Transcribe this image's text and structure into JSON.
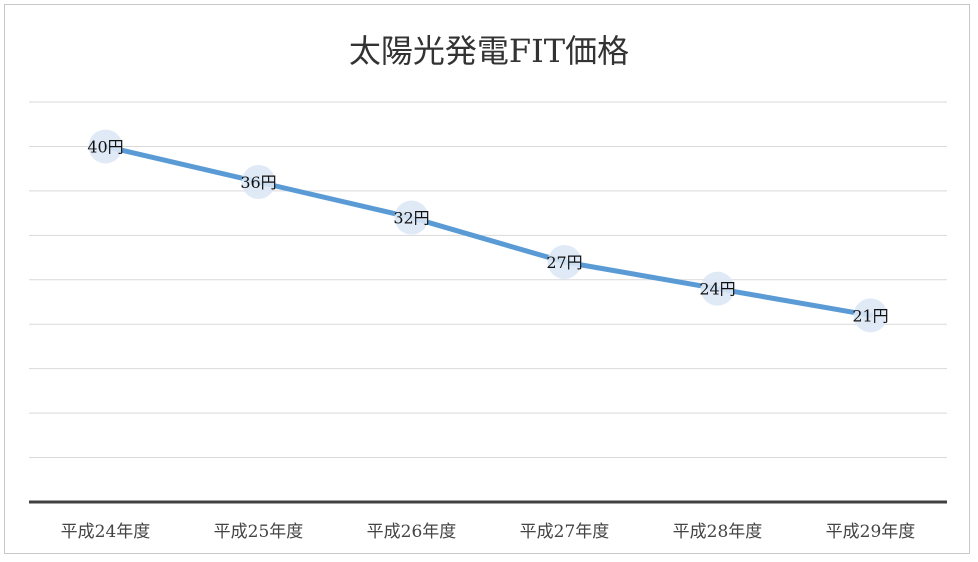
{
  "chart_data": {
    "type": "line",
    "title": "太陽光発電FIT価格",
    "categories": [
      "平成24年度",
      "平成25年度",
      "平成26年度",
      "平成27年度",
      "平成28年度",
      "平成29年度"
    ],
    "series": [
      {
        "values": [
          40,
          36,
          32,
          27,
          24,
          21
        ],
        "labels": [
          "40円",
          "36円",
          "32円",
          "27円",
          "24円",
          "21円"
        ]
      }
    ],
    "ylim": [
      0,
      45
    ],
    "grid": true,
    "legend": "none",
    "colors": {
      "line": "#5b9bd5",
      "marker": "#dde8f6",
      "grid": "#d9d9d9",
      "axis": "#404040"
    }
  }
}
